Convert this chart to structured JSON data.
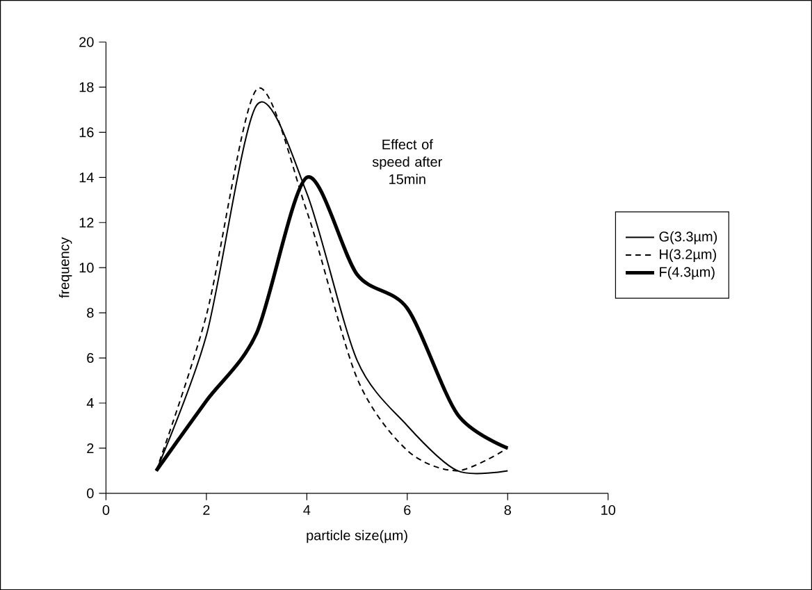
{
  "chart_data": {
    "type": "line",
    "xlabel": "particle size(µm)",
    "ylabel": "frequency",
    "x": [
      1,
      2,
      3,
      4,
      5,
      6,
      7,
      8
    ],
    "series": [
      {
        "name": "G(3.3µm)",
        "color": "#000000",
        "line_style": "solid",
        "values": [
          1,
          7,
          17.2,
          13.3,
          5.9,
          3,
          1,
          1
        ]
      },
      {
        "name": "H(3.2µm)",
        "color": "#000000",
        "line_style": "dashed",
        "values": [
          1,
          7.9,
          17.9,
          12.5,
          5.1,
          1.9,
          1,
          2
        ]
      },
      {
        "name": "F(4.3µm)",
        "color": "#000000",
        "line_style": "solid",
        "values": [
          1,
          4.1,
          7.1,
          14,
          9.7,
          8.2,
          3.5,
          2
        ]
      }
    ],
    "xlim": [
      0,
      10
    ],
    "ylim": [
      0,
      20
    ],
    "xticks": [
      0,
      2,
      4,
      6,
      8,
      10
    ],
    "yticks": [
      0,
      2,
      4,
      6,
      8,
      10,
      12,
      14,
      16,
      18,
      20
    ],
    "grid": false,
    "legend": "right",
    "marker": "none",
    "annotations": [
      "Effect of speed after 15min"
    ]
  }
}
